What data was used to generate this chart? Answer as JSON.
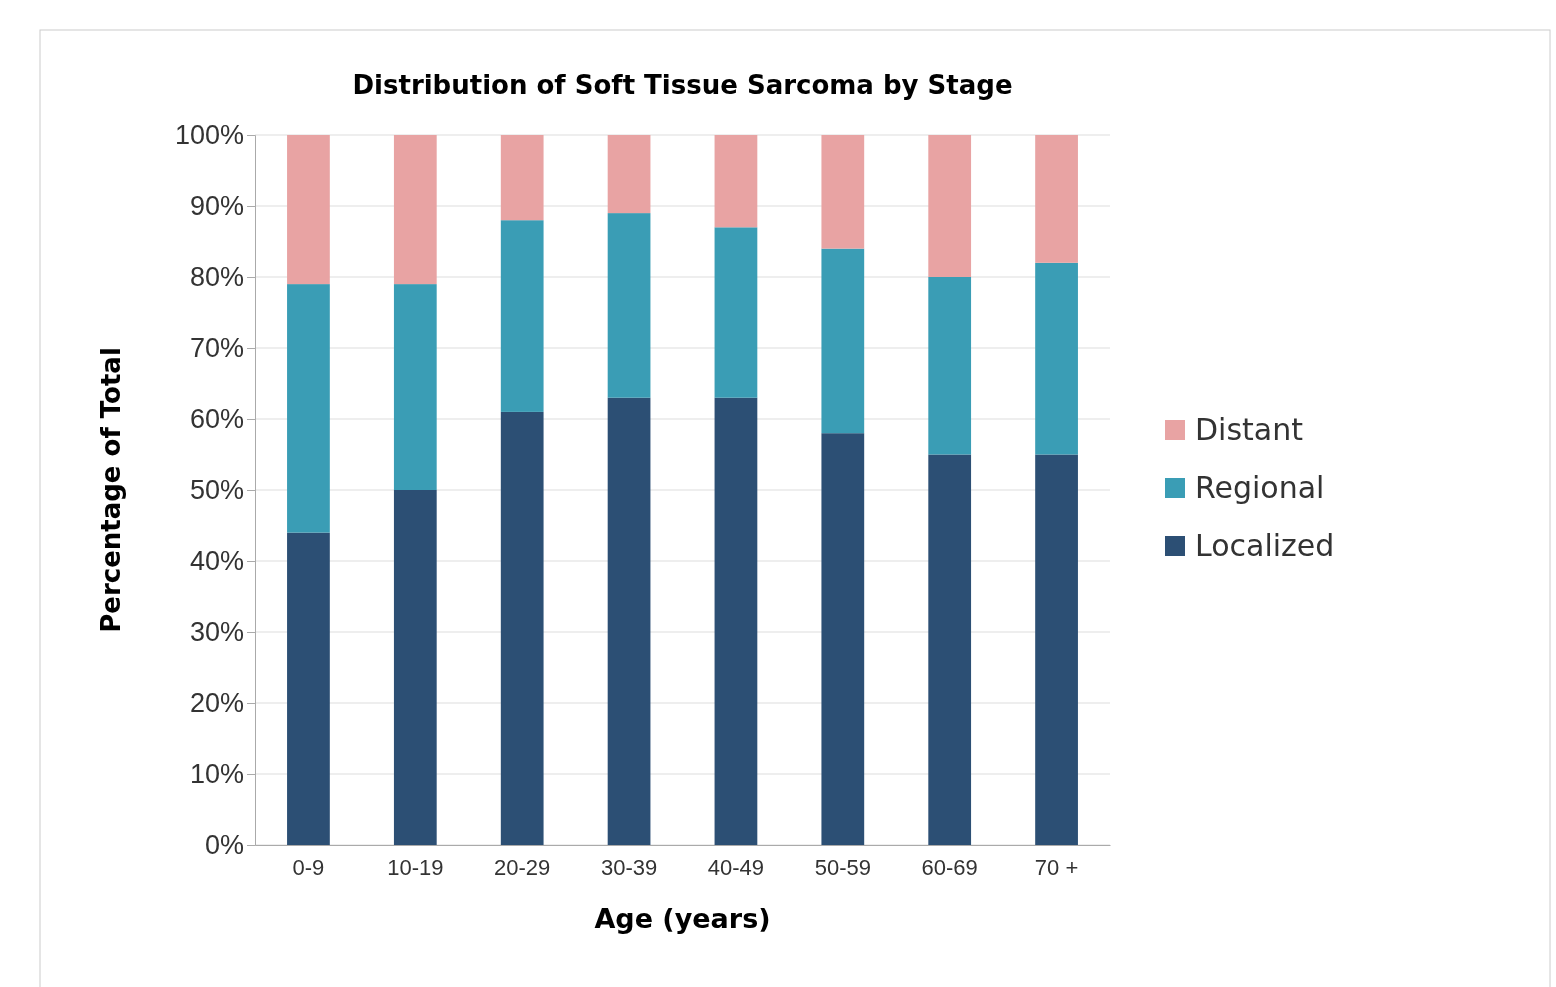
{
  "chart_data": {
    "type": "bar",
    "title": "Distribution of Soft Tissue Sarcoma by Stage",
    "xlabel": "Age (years)",
    "ylabel": "Percentage of Total",
    "categories": [
      "0-9",
      "10-19",
      "20-29",
      "30-39",
      "40-49",
      "50-59",
      "60-69",
      "70 +"
    ],
    "stacked": true,
    "series": [
      {
        "name": "Localized",
        "color": "#2c4f74",
        "values": [
          44,
          50,
          61,
          63,
          63,
          58,
          55,
          55
        ]
      },
      {
        "name": "Regional",
        "color": "#3a9db5",
        "values": [
          35,
          29,
          27,
          26,
          24,
          26,
          25,
          27
        ]
      },
      {
        "name": "Distant",
        "color": "#e8a3a3",
        "values": [
          21,
          21,
          12,
          11,
          13,
          16,
          20,
          18
        ]
      }
    ],
    "ylim": [
      0,
      100
    ],
    "yticks": [
      {
        "value": 0,
        "label": "0%"
      },
      {
        "value": 10,
        "label": "10%"
      },
      {
        "value": 20,
        "label": "20%"
      },
      {
        "value": 30,
        "label": "30%"
      },
      {
        "value": 40,
        "label": "40%"
      },
      {
        "value": 50,
        "label": "50%"
      },
      {
        "value": 60,
        "label": "60%"
      },
      {
        "value": 70,
        "label": "70%"
      },
      {
        "value": 80,
        "label": "80%"
      },
      {
        "value": 90,
        "label": "90%"
      },
      {
        "value": 100,
        "label": "100%"
      }
    ],
    "grid": "y",
    "legend": "right"
  }
}
